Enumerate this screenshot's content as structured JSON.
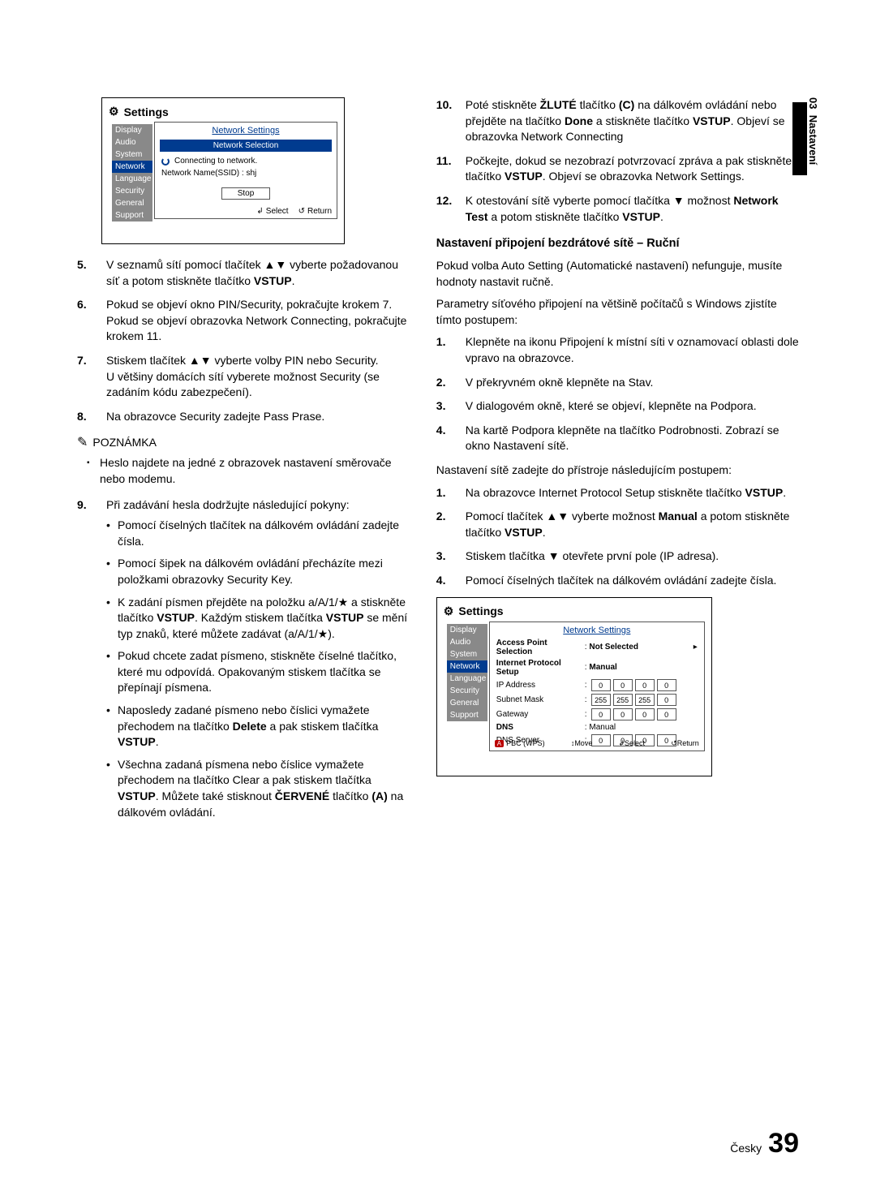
{
  "sideTab": {
    "chapter": "03",
    "title": "Nastavení"
  },
  "ui1": {
    "title": "Settings",
    "sidebar": [
      "Display",
      "Audio",
      "System",
      "Network",
      "Language",
      "Security",
      "General",
      "Support"
    ],
    "sidebarSelected": 3,
    "panelTitle": "Network Settings",
    "subBox": "Network Selection",
    "connecting": "Connecting to network.",
    "ssid": "Network Name(SSID) : shj",
    "stop": "Stop",
    "select": "Select",
    "ret": "Return"
  },
  "ui2": {
    "title": "Settings",
    "sidebar": [
      "Display",
      "Audio",
      "System",
      "Network",
      "Language",
      "Security",
      "General",
      "Support"
    ],
    "sidebarSelected": 3,
    "panelTitle": "Network Settings",
    "rowAP": {
      "label": "Access Point Selection",
      "value": "Not Selected"
    },
    "rowIPS": {
      "label": "Internet Protocol Setup",
      "value": "Manual"
    },
    "ip": {
      "label": "IP Address",
      "cells": [
        "0",
        "0",
        "0",
        "0"
      ]
    },
    "mask": {
      "label": "Subnet Mask",
      "cells": [
        "255",
        "255",
        "255",
        "0"
      ]
    },
    "gw": {
      "label": "Gateway",
      "cells": [
        "0",
        "0",
        "0",
        "0"
      ]
    },
    "dns": {
      "label": "DNS",
      "value": "Manual"
    },
    "dnsserv": {
      "label": "DNS Server",
      "cells": [
        "0",
        "0",
        "0",
        "0"
      ]
    },
    "pbc": "PBC (WPS)",
    "move": "Move",
    "select": "Select",
    "ret": "Return"
  },
  "left": {
    "li5": {
      "num": "5.",
      "text": "V seznamů sítí pomocí tlačítek ▲▼ vyberte požadovanou síť a potom stiskněte tlačítko ",
      "bold": "VSTUP",
      "after": "."
    },
    "li6": {
      "num": "6.",
      "text": "Pokud se objeví okno PIN/Security, pokračujte krokem 7. Pokud se objeví obrazovka Network Connecting, pokračujte krokem 11."
    },
    "li7": {
      "num": "7.",
      "text": "Stiskem tlačítek ▲▼ vyberte volby PIN nebo Security.",
      "text2": "U většiny domácích sítí vyberete možnost Security (se zadáním kódu zabezpečení)."
    },
    "li8": {
      "num": "8.",
      "text": "Na obrazovce Security zadejte Pass Prase."
    },
    "noteHead": "POZNÁMKA",
    "noteBody": "Heslo najdete na jedné z obrazovek nastavení směrovače nebo modemu.",
    "li9": {
      "num": "9.",
      "text": "Při zadávání hesla dodržujte následující pokyny:",
      "bullets": [
        "Pomocí číselných tlačítek na dálkovém ovládání zadejte čísla.",
        "Pomocí šipek na dálkovém ovládání přecházíte mezi položkami obrazovky Security Key.",
        "K zadání písmen přejděte na položku a/A/1/★ a stiskněte tlačítko <b>VSTUP</b>. Každým stiskem tlačítka <b>VSTUP</b> se mění typ znaků, které můžete zadávat (a/A/1/★).",
        "Pokud chcete zadat písmeno, stiskněte číselné tlačítko, které mu odpovídá. Opakovaným stiskem tlačítka se přepínají písmena.",
        "Naposledy zadané písmeno nebo číslici vymažete přechodem na tlačítko <b>Delete</b> a pak stiskem tlačítka <b>VSTUP</b>.",
        "Všechna zadaná písmena nebo číslice vymažete přechodem na tlačítko Clear a pak stiskem tlačítka <b>VSTUP</b>. Můžete také stisknout <b>ČERVENÉ</b> tlačítko <b>(A)</b> na dálkovém ovládání."
      ]
    }
  },
  "right": {
    "li10": {
      "num": "10.",
      "text": "Poté stiskněte <b>ŽLUTÉ</b> tlačítko <b>(C)</b> na dálkovém ovládání nebo přejděte na tlačítko <b>Done</b> a stiskněte tlačítko <b>VSTUP</b>. Objeví se obrazovka Network Connecting"
    },
    "li11": {
      "num": "11.",
      "text": "Počkejte, dokud se nezobrazí potvrzovací zpráva a pak stiskněte tlačítko <b>VSTUP</b>. Objeví se obrazovka Network Settings."
    },
    "li12": {
      "num": "12.",
      "text": "K otestování sítě vyberte pomocí tlačítka ▼ možnost <b>Network Test</b> a potom stiskněte tlačítko <b>VSTUP</b>."
    },
    "subhead": "Nastavení připojení bezdrátové sítě – Ruční",
    "p1": "Pokud volba Auto Setting (Automatické nastavení) nefunguje, musíte hodnoty nastavit ručně.",
    "p2": "Parametry síťového připojení na většině počítačů s Windows zjistíte tímto postupem:",
    "steps1": [
      {
        "num": "1.",
        "text": "Klepněte na ikonu Připojení k místní síti v oznamovací oblasti dole vpravo na obrazovce."
      },
      {
        "num": "2.",
        "text": "V překryvném okně klepněte na Stav."
      },
      {
        "num": "3.",
        "text": "V dialogovém okně, které se objeví, klepněte na Podpora."
      },
      {
        "num": "4.",
        "text": "Na kartě Podpora klepněte na tlačítko Podrobnosti. Zobrazí se okno Nastavení sítě."
      }
    ],
    "p3": "Nastavení sítě zadejte do přístroje následujícím postupem:",
    "steps2": [
      {
        "num": "1.",
        "text": "Na obrazovce Internet Protocol Setup stiskněte tlačítko <b>VSTUP</b>."
      },
      {
        "num": "2.",
        "text": "Pomocí tlačítek ▲▼ vyberte možnost <b>Manual</b> a potom stiskněte tlačítko <b>VSTUP</b>."
      },
      {
        "num": "3.",
        "text": "Stiskem tlačítka ▼ otevřete první pole (IP adresa)."
      },
      {
        "num": "4.",
        "text": "Pomocí číselných tlačítek na dálkovém ovládání zadejte čísla."
      }
    ]
  },
  "footer": {
    "lang": "Česky",
    "page": "39"
  }
}
